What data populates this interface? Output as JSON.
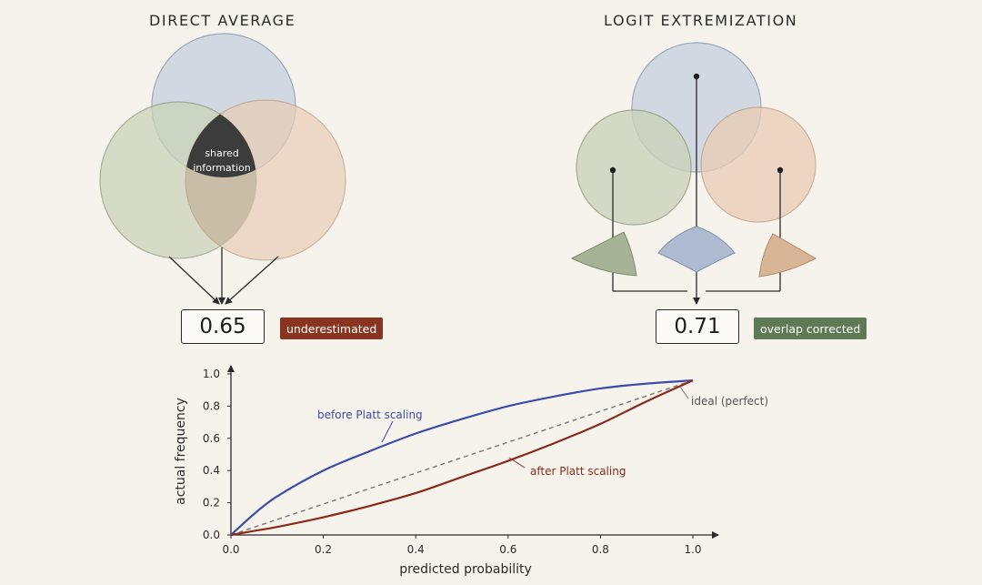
{
  "left_panel": {
    "title": "DIRECT AVERAGE",
    "center_label_line1": "shared",
    "center_label_line2": "information",
    "value": "0.65",
    "badge": "underestimated",
    "badge_color": "#8a3420"
  },
  "right_panel": {
    "title": "LOGIT EXTREMIZATION",
    "value": "0.71",
    "badge": "overlap corrected",
    "badge_color": "#5d7a55"
  },
  "colors": {
    "blue_circle": "#cdd6e0",
    "green_circle": "#d2d9c3",
    "orange_circle": "#ecd3bf",
    "shared_dark": "#3c3c3c",
    "before_curve": "#3b4da8",
    "after_curve": "#8a2a18",
    "ideal_line": "#777777"
  },
  "chart_data": {
    "type": "line",
    "xlabel": "predicted probability",
    "ylabel": "actual frequency",
    "xlim": [
      0,
      1
    ],
    "ylim": [
      0,
      1
    ],
    "xticks": [
      "0.0",
      "0.2",
      "0.4",
      "0.6",
      "0.8",
      "1.0"
    ],
    "yticks": [
      "0.0",
      "0.2",
      "0.4",
      "0.6",
      "0.8",
      "1.0"
    ],
    "grid": false,
    "series": [
      {
        "name": "before Platt scaling",
        "x": [
          0,
          0.05,
          0.1,
          0.2,
          0.3,
          0.4,
          0.5,
          0.6,
          0.7,
          0.8,
          0.9,
          1.0
        ],
        "y": [
          0,
          0.13,
          0.24,
          0.4,
          0.52,
          0.63,
          0.72,
          0.8,
          0.86,
          0.91,
          0.94,
          0.96
        ]
      },
      {
        "name": "after Platt scaling",
        "x": [
          0,
          0.05,
          0.1,
          0.2,
          0.3,
          0.4,
          0.5,
          0.6,
          0.7,
          0.8,
          0.9,
          1.0
        ],
        "y": [
          0,
          0.025,
          0.05,
          0.11,
          0.18,
          0.26,
          0.36,
          0.46,
          0.57,
          0.69,
          0.83,
          0.96
        ]
      },
      {
        "name": "ideal (perfect)",
        "x": [
          0,
          1.0
        ],
        "y": [
          0,
          0.96
        ]
      }
    ]
  }
}
